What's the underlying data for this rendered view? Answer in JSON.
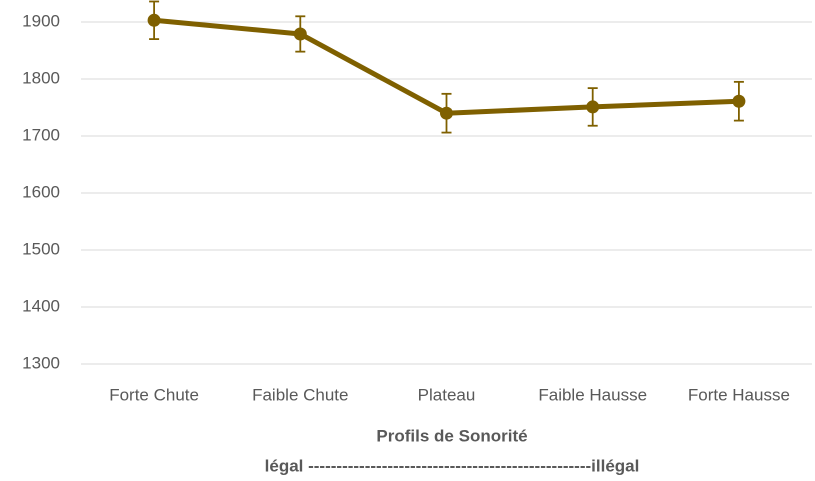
{
  "chart_data": {
    "type": "line",
    "categories": [
      "Forte Chute",
      "Faible Chute",
      "Plateau",
      "Faible Hausse",
      "Forte Hausse"
    ],
    "series": [
      {
        "color": "#7f6000",
        "values": [
          1903,
          1879,
          1740,
          1751,
          1761
        ],
        "errors": [
          33,
          31,
          34,
          33,
          34
        ]
      }
    ],
    "ylim": [
      1300,
      1900
    ],
    "yticks": [
      1300,
      1400,
      1500,
      1600,
      1700,
      1800,
      1900
    ],
    "grid": true,
    "x_label": "Profils de Sonorité",
    "annotation": "légal --------------------------------------------------illégal"
  }
}
